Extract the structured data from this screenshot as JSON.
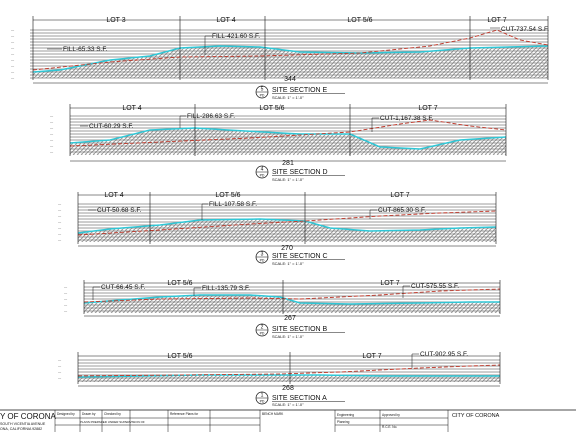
{
  "sections": [
    {
      "id": "E",
      "num": "5",
      "sub": "PD",
      "title": "SITE SECTION E",
      "scale": "SCALE: 1\" = 1'-0\"",
      "length": "344",
      "lots": [
        "LOT 3",
        "LOT 4",
        "LOT 5/6",
        "LOT 7"
      ],
      "callouts": [
        "FILL-65.33 S.F.",
        "FILL-421.60 S.F.",
        "CUT-737.54 S.F."
      ]
    },
    {
      "id": "D",
      "num": "4",
      "sub": "PD",
      "title": "SITE SECTION D",
      "scale": "SCALE: 1\" = 1'-0\"",
      "length": "281",
      "lots": [
        "LOT 4",
        "LOT 5/6",
        "LOT 7"
      ],
      "callouts": [
        "CUT-60.29 S.F.",
        "FILL-286.63 S.F.",
        "CUT-1,167.38 S.F."
      ]
    },
    {
      "id": "C",
      "num": "3",
      "sub": "PD",
      "title": "SITE SECTION C",
      "scale": "SCALE: 1\" = 1'-0\"",
      "length": "270",
      "lots": [
        "LOT 4",
        "LOT 5/6",
        "LOT 7"
      ],
      "callouts": [
        "CUT-50.68 S.F.",
        "FILL-107.58 S.F.",
        "CUT-865.30 S.F."
      ]
    },
    {
      "id": "B",
      "num": "2",
      "sub": "PD",
      "title": "SITE SECTION B",
      "scale": "SCALE: 1\" = 1'-0\"",
      "length": "267",
      "lots": [
        "LOT 5/6",
        "LOT 7"
      ],
      "callouts": [
        "CUT-66.45 S.F.",
        "FILL-135.79 S.F.",
        "CUT-575.55 S.F."
      ]
    },
    {
      "id": "A",
      "num": "1",
      "sub": "PD",
      "title": "SITE SECTION A",
      "scale": "SCALE: 1\" = 1'-0\"",
      "length": "268",
      "lots": [
        "LOT 5/6",
        "LOT 7"
      ],
      "callouts": [
        "CUT-902.95 S.F."
      ]
    }
  ],
  "title_block": {
    "agency": "Y OF CORONA",
    "address1": "SOUTH VICENTIA AVENUE",
    "address2": "ONA, CALIFORNIA 92882",
    "designed_by": "Designed by",
    "drawn_by": "Drawn by",
    "checked_by": "Checked by",
    "plans_note": "PLANS PREPARED UNDER SUPERVISION OF",
    "reference": "Reference Plans for",
    "bench_mark": "BENCH MARK",
    "engineering": "Engineering",
    "planning": "Planning",
    "approved_by": "Approved by",
    "city_name": "CITY OF CORONA",
    "rce_label": "R.C.E. No."
  },
  "colors": {
    "ground": "#2fc7d6",
    "cut_line": "#c0392b",
    "ink": "#111111",
    "hatch": "#707070"
  }
}
